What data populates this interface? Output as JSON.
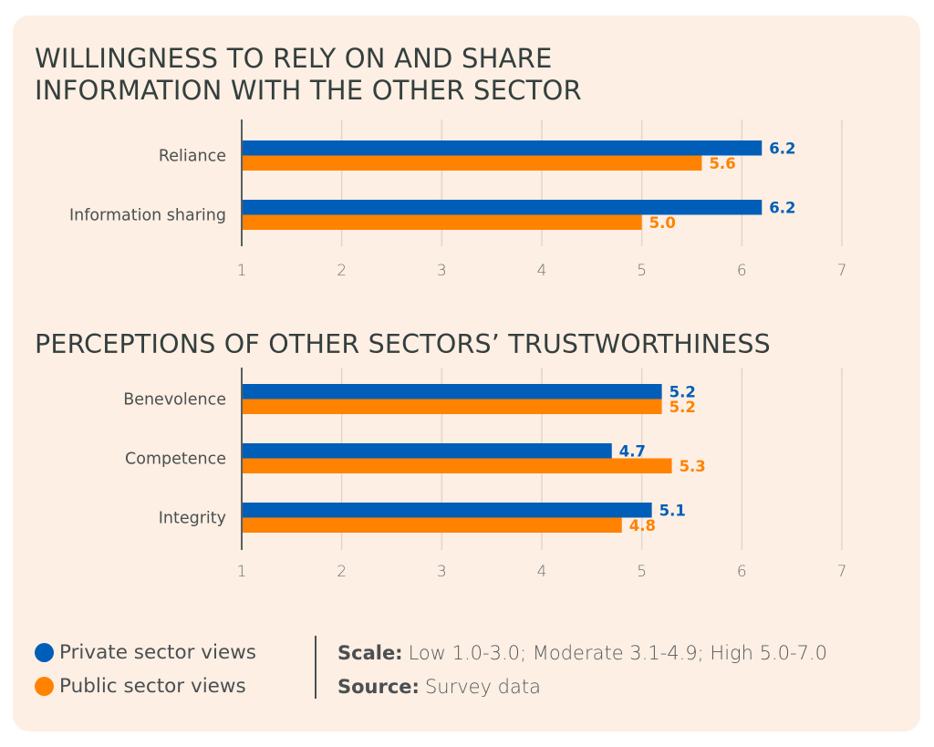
{
  "colors": {
    "private": "#005EB8",
    "public": "#FF8200",
    "background": "#FDEFE3",
    "title": "#343F3E",
    "grid": "#E2D6CB",
    "axis": "#5A5E60"
  },
  "chart_data": [
    {
      "type": "bar",
      "orientation": "horizontal",
      "title": "WILLINGNESS TO RELY ON AND SHARE INFORMATION WITH THE OTHER SECTOR",
      "categories": [
        "Reliance",
        "Information sharing"
      ],
      "series": [
        {
          "name": "Private sector views",
          "values": [
            6.2,
            6.2
          ],
          "labels": [
            "6.2",
            "6.2"
          ]
        },
        {
          "name": "Public sector views",
          "values": [
            5.6,
            5.0
          ],
          "labels": [
            "5.6",
            "5.0"
          ]
        }
      ],
      "xlim": [
        1,
        7
      ],
      "xticks": [
        "1",
        "2",
        "3",
        "4",
        "5",
        "6",
        "7"
      ],
      "grid": true,
      "xlabel": "",
      "ylabel": ""
    },
    {
      "type": "bar",
      "orientation": "horizontal",
      "title": "PERCEPTIONS OF OTHER SECTORS’ TRUSTWORTHINESS",
      "categories": [
        "Benevolence",
        "Competence",
        "Integrity"
      ],
      "series": [
        {
          "name": "Private sector views",
          "values": [
            5.2,
            4.7,
            5.1
          ],
          "labels": [
            "5.2",
            "4.7",
            "5.1"
          ]
        },
        {
          "name": "Public sector views",
          "values": [
            5.2,
            5.3,
            4.8
          ],
          "labels": [
            "5.2",
            "5.3",
            "4.8"
          ]
        }
      ],
      "xlim": [
        1,
        7
      ],
      "xticks": [
        "1",
        "2",
        "3",
        "4",
        "5",
        "6",
        "7"
      ],
      "grid": true,
      "xlabel": "",
      "ylabel": ""
    }
  ],
  "legend": {
    "placement": "bottom-left",
    "items": [
      {
        "label": "Private sector views",
        "color": "#005EB8"
      },
      {
        "label": "Public sector views",
        "color": "#FF8200"
      }
    ]
  },
  "notes": {
    "scale_label": "Scale:",
    "scale_text": "Low 1.0-3.0; Moderate 3.1-4.9; High 5.0-7.0",
    "source_label": "Source:",
    "source_text": "Survey data"
  }
}
